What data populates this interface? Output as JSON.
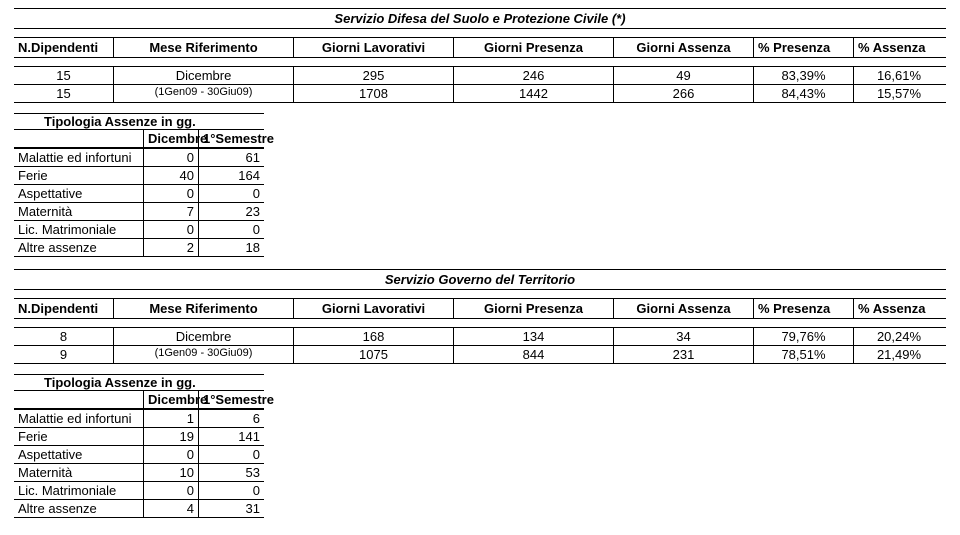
{
  "sections": [
    {
      "title": "Servizio Difesa del Suolo e Protezione Civile (*)",
      "headers": [
        "N.Dipendenti",
        "Mese Riferimento",
        "Giorni Lavorativi",
        "Giorni Presenza",
        "Giorni Assenza",
        "% Presenza",
        "% Assenza"
      ],
      "rows": [
        {
          "ndip": "15",
          "mese": "Dicembre",
          "lav": "295",
          "pres": "246",
          "ass": "49",
          "ppres": "83,39%",
          "pass": "16,61%"
        },
        {
          "ndip": "15",
          "mese": "(1Gen09 - 30Giu09)",
          "lav": "1708",
          "pres": "1442",
          "ass": "266",
          "ppres": "84,43%",
          "pass": "15,57%"
        }
      ],
      "tipologia_title": "Tipologia Assenze in gg.",
      "small_headers": [
        "Dicembre",
        "1°Semestre"
      ],
      "small_rows": [
        {
          "label": "Malattie ed infortuni",
          "c1": "0",
          "c2": "61"
        },
        {
          "label": "Ferie",
          "c1": "40",
          "c2": "164"
        },
        {
          "label": "Aspettative",
          "c1": "0",
          "c2": "0"
        },
        {
          "label": "Maternità",
          "c1": "7",
          "c2": "23"
        },
        {
          "label": "Lic. Matrimoniale",
          "c1": "0",
          "c2": "0"
        },
        {
          "label": "Altre assenze",
          "c1": "2",
          "c2": "18"
        }
      ]
    },
    {
      "title": "Servizio Governo del Territorio",
      "headers": [
        "N.Dipendenti",
        "Mese Riferimento",
        "Giorni Lavorativi",
        "Giorni Presenza",
        "Giorni Assenza",
        "% Presenza",
        "% Assenza"
      ],
      "rows": [
        {
          "ndip": "8",
          "mese": "Dicembre",
          "lav": "168",
          "pres": "134",
          "ass": "34",
          "ppres": "79,76%",
          "pass": "20,24%"
        },
        {
          "ndip": "9",
          "mese": "(1Gen09 - 30Giu09)",
          "lav": "1075",
          "pres": "844",
          "ass": "231",
          "ppres": "78,51%",
          "pass": "21,49%"
        }
      ],
      "tipologia_title": "Tipologia Assenze in gg.",
      "small_headers": [
        "Dicembre",
        "1°Semestre"
      ],
      "small_rows": [
        {
          "label": "Malattie ed infortuni",
          "c1": "1",
          "c2": "6"
        },
        {
          "label": "Ferie",
          "c1": "19",
          "c2": "141"
        },
        {
          "label": "Aspettative",
          "c1": "0",
          "c2": "0"
        },
        {
          "label": "Maternità",
          "c1": "10",
          "c2": "53"
        },
        {
          "label": "Lic. Matrimoniale",
          "c1": "0",
          "c2": "0"
        },
        {
          "label": "Altre assenze",
          "c1": "4",
          "c2": "31"
        }
      ]
    }
  ]
}
